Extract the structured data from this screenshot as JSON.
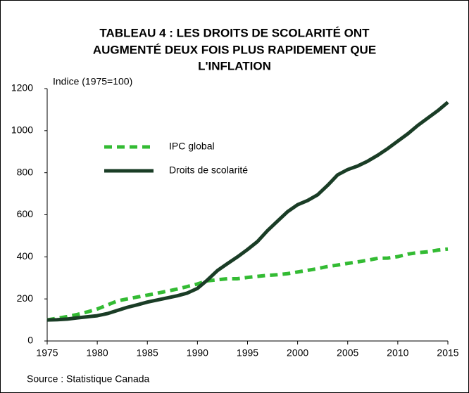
{
  "chart_data": {
    "type": "line",
    "title": [
      "TABLEAU 4 : LES DROITS DE SCOLARITÉ ONT",
      "AUGMENTÉ DEUX FOIS PLUS RAPIDEMENT QUE",
      "L'INFLATION"
    ],
    "y_label": "Indice (1975=100)",
    "source": "Source :  Statistique Canada",
    "x": [
      1975,
      1976,
      1977,
      1978,
      1979,
      1980,
      1981,
      1982,
      1983,
      1984,
      1985,
      1986,
      1987,
      1988,
      1989,
      1990,
      1991,
      1992,
      1993,
      1994,
      1995,
      1996,
      1997,
      1998,
      1999,
      2000,
      2001,
      2002,
      2003,
      2004,
      2005,
      2006,
      2007,
      2008,
      2009,
      2010,
      2011,
      2012,
      2013,
      2014,
      2015
    ],
    "series": [
      {
        "name": "IPC global",
        "color": "#33bb33",
        "dashed": true,
        "values": [
          100,
          108,
          116,
          126,
          138,
          152,
          171,
          190,
          200,
          209,
          218,
          227,
          237,
          247,
          259,
          271,
          286,
          291,
          296,
          296,
          302,
          307,
          312,
          315,
          320,
          328,
          336,
          344,
          354,
          361,
          369,
          376,
          384,
          393,
          394,
          401,
          413,
          420,
          424,
          432,
          437
        ]
      },
      {
        "name": "Droits de scolarité",
        "color": "#1a3d26",
        "dashed": false,
        "values": [
          100,
          101,
          104,
          110,
          115,
          120,
          130,
          145,
          160,
          172,
          185,
          195,
          205,
          215,
          228,
          250,
          290,
          335,
          368,
          400,
          435,
          473,
          525,
          570,
          615,
          648,
          668,
          695,
          740,
          790,
          815,
          832,
          855,
          883,
          915,
          950,
          985,
          1025,
          1060,
          1095,
          1135
        ]
      }
    ],
    "xlim": [
      1975,
      2015
    ],
    "xticks": [
      1975,
      1980,
      1985,
      1990,
      1995,
      2000,
      2005,
      2010,
      2015
    ],
    "ylim": [
      0,
      1200
    ],
    "yticks": [
      0,
      200,
      400,
      600,
      800,
      1000,
      1200
    ],
    "legend": "upper-left",
    "grid": false
  }
}
